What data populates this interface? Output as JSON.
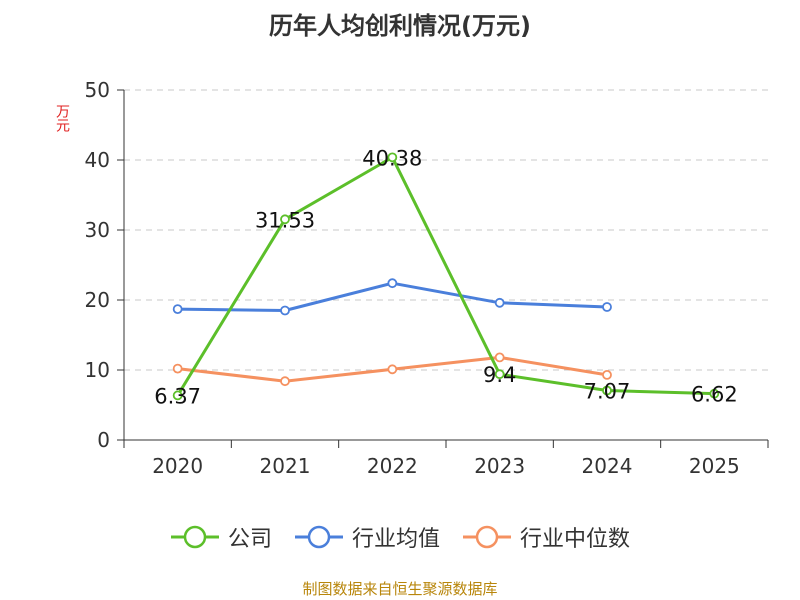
{
  "chart_data": {
    "type": "line",
    "title": "历年人均创利情况(万元)",
    "ylabel": "万元",
    "xlabel": "",
    "categories": [
      "2020",
      "2021",
      "2022",
      "2023",
      "2024",
      "2025"
    ],
    "ylim": [
      0,
      50
    ],
    "yticks": [
      0,
      10,
      20,
      30,
      40,
      50
    ],
    "grid": true,
    "legend_position": "bottom",
    "series": [
      {
        "name": "公司",
        "color": "#5cbf2a",
        "values": [
          6.37,
          31.53,
          40.38,
          9.4,
          7.07,
          6.62
        ],
        "labels": [
          "6.37",
          "31.53",
          "40.38",
          "9.4",
          "7.07",
          "6.62"
        ]
      },
      {
        "name": "行业均值",
        "color": "#4a7fdb",
        "values": [
          18.7,
          18.5,
          22.4,
          19.6,
          19.0,
          null
        ]
      },
      {
        "name": "行业中位数",
        "color": "#f59160",
        "values": [
          10.2,
          8.4,
          10.1,
          11.8,
          9.3,
          null
        ]
      }
    ]
  },
  "footer": "制图数据来自恒生聚源数据库"
}
